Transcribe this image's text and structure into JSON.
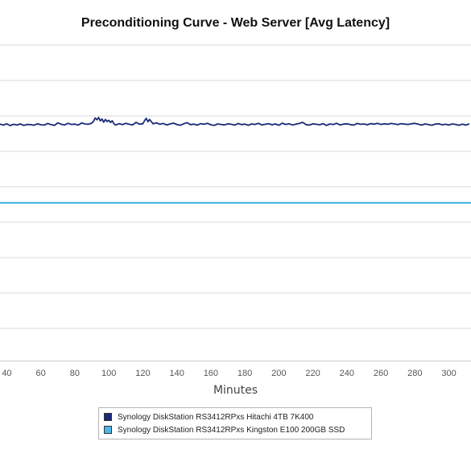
{
  "chart_data": {
    "type": "line",
    "title": "Preconditioning Curve - Web Server [Avg Latency]",
    "xlabel": "Minutes",
    "ylabel": "",
    "x_ticks": [
      40,
      60,
      80,
      100,
      120,
      140,
      160,
      180,
      200,
      220,
      240,
      260,
      280,
      300
    ],
    "xlim": [
      36,
      313
    ],
    "grid": true,
    "legend_position": "bottom-center",
    "series": [
      {
        "name": "Synology DiskStation RS3412RPxs Hitachi 4TB 7K400",
        "color": "#1b2a78",
        "x": [
          36,
          38,
          40,
          42,
          44,
          46,
          48,
          50,
          52,
          54,
          56,
          58,
          60,
          62,
          64,
          66,
          68,
          70,
          72,
          74,
          76,
          78,
          80,
          82,
          84,
          86,
          88,
          90,
          91,
          92,
          93,
          94,
          95,
          96,
          97,
          98,
          99,
          100,
          101,
          102,
          103,
          104,
          106,
          108,
          110,
          112,
          114,
          116,
          118,
          120,
          121,
          122,
          123,
          124,
          126,
          128,
          130,
          132,
          134,
          136,
          138,
          140,
          142,
          144,
          146,
          148,
          150,
          152,
          154,
          156,
          158,
          160,
          162,
          164,
          166,
          168,
          170,
          172,
          174,
          176,
          178,
          180,
          182,
          184,
          186,
          188,
          190,
          192,
          194,
          196,
          198,
          200,
          202,
          204,
          206,
          208,
          210,
          212,
          214,
          216,
          218,
          220,
          222,
          224,
          226,
          228,
          230,
          232,
          234,
          236,
          238,
          240,
          242,
          244,
          246,
          248,
          250,
          252,
          254,
          256,
          258,
          260,
          262,
          264,
          266,
          268,
          270,
          272,
          274,
          276,
          278,
          280,
          282,
          284,
          286,
          288,
          290,
          292,
          294,
          296,
          298,
          300,
          302,
          304,
          306,
          308,
          310,
          312
        ],
        "y": [
          0.4,
          -0.2,
          0.6,
          -0.5,
          0.3,
          -0.1,
          0.5,
          -0.4,
          0.2,
          0.1,
          -0.3,
          0.6,
          0.0,
          -0.2,
          0.8,
          0.1,
          -0.4,
          1.2,
          0.3,
          -0.1,
          0.9,
          0.2,
          0.4,
          -0.2,
          1.1,
          0.5,
          0.3,
          1.0,
          2.2,
          4.2,
          3.1,
          4.5,
          2.4,
          3.6,
          1.6,
          3.3,
          2.0,
          2.8,
          1.4,
          2.5,
          0.6,
          -0.2,
          0.7,
          0.1,
          0.9,
          0.3,
          -0.1,
          1.5,
          0.4,
          0.6,
          2.5,
          4.0,
          1.9,
          3.3,
          0.6,
          1.2,
          0.3,
          0.8,
          -0.1,
          0.5,
          1.0,
          0.2,
          -0.3,
          0.6,
          1.3,
          0.1,
          0.4,
          -0.2,
          0.7,
          0.3,
          0.9,
          0.0,
          -0.4,
          0.5,
          0.2,
          -0.1,
          0.6,
          0.3,
          -0.2,
          0.8,
          0.1,
          0.4,
          -0.3,
          0.5,
          0.2,
          0.9,
          -0.1,
          0.3,
          0.7,
          0.0,
          0.5,
          -0.3,
          1.0,
          0.2,
          0.6,
          -0.1,
          0.4,
          0.8,
          1.5,
          0.1,
          -0.2,
          0.6,
          0.3,
          0.0,
          0.7,
          -0.4,
          0.5,
          0.2,
          0.9,
          -0.1,
          0.4,
          0.6,
          0.1,
          -0.2,
          0.8,
          0.3,
          0.5,
          0.0,
          0.7,
          0.4,
          0.9,
          0.2,
          0.6,
          0.3,
          0.8,
          0.5,
          0.1,
          0.7,
          0.4,
          0.2,
          0.6,
          0.9,
          0.3,
          -0.2,
          0.5,
          0.1,
          -0.3,
          0.4,
          0.6,
          0.0,
          0.3,
          -0.1,
          0.5,
          0.2,
          -0.3,
          0.4,
          -0.2,
          0.6
        ]
      },
      {
        "name": "Synology DiskStation RS3412RPxs Kingston E100 200GB SSD",
        "color": "#4db6e6",
        "x": [
          36,
          60,
          90,
          120,
          150,
          180,
          210,
          240,
          270,
          300,
          313
        ],
        "y": [
          -48.5,
          -48.5,
          -48.5,
          -48.5,
          -48.5,
          -48.5,
          -48.5,
          -48.5,
          -48.5,
          -48.5,
          -48.5
        ]
      }
    ]
  }
}
